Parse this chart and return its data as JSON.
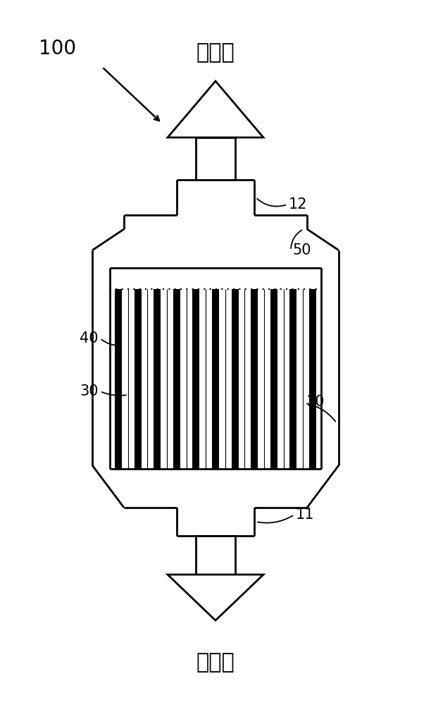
{
  "bg_color": "#ffffff",
  "line_color": "#000000",
  "title_label": "100",
  "top_label": "烟气出",
  "bottom_label": "烟气进",
  "label_12": "12",
  "label_50": "50",
  "label_40": "40",
  "label_30": "30",
  "label_10": "10",
  "label_11": "11",
  "num_thick_bars": 11,
  "num_thin_bars": 10
}
